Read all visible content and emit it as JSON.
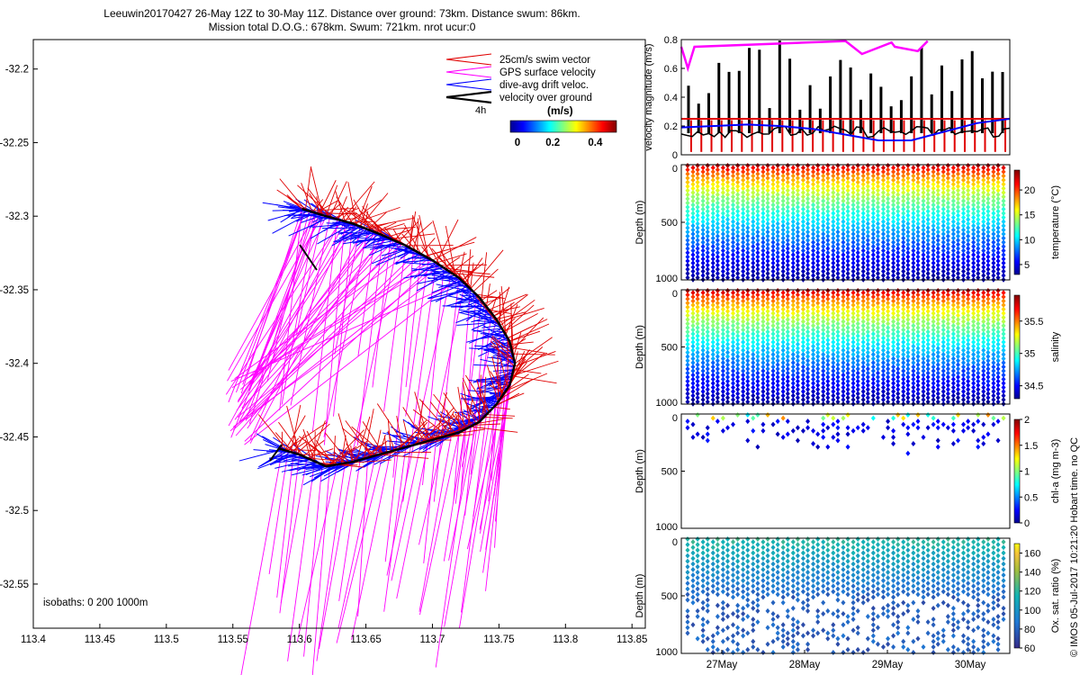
{
  "figure": {
    "title_line1": "Leeuwin20170427 26-May 12Z to 30-May 11Z. Distance over ground: 73km. Distance swum: 86km.",
    "title_line2": "Mission total D.O.G.: 678km. Swum: 721km. nrot ucur:0",
    "credit": "© IMOS 05-Jul-2017 10:21:20 Hobart time. no QC"
  },
  "colors": {
    "swim_vector": "#e00000",
    "gps_surface_velocity": "#ff00ff",
    "dive_avg_drift": "#0000ff",
    "velocity_over_ground": "#000000",
    "track": "#000000"
  },
  "chart_data": [
    {
      "type": "scatter",
      "panel": "map",
      "xlim": [
        113.4,
        113.86
      ],
      "ylim": [
        -32.58,
        -32.18
      ],
      "xticks": [
        "113.4",
        "113.45",
        "113.5",
        "113.55",
        "113.6",
        "113.65",
        "113.7",
        "113.75",
        "113.8",
        "113.85"
      ],
      "yticks": [
        "-32.2",
        "-32.25",
        "-32.3",
        "-32.35",
        "-32.4",
        "-32.45",
        "-32.5",
        "-32.55"
      ],
      "legend": [
        {
          "label": "25cm/s swim vector",
          "color": "#e00000"
        },
        {
          "label": "GPS surface velocity",
          "color": "#ff00ff"
        },
        {
          "label": "dive-avg drift veloc.",
          "color": "#0000ff"
        },
        {
          "label": "velocity over ground",
          "color": "#000000"
        }
      ],
      "legend_scale_label": "4h",
      "colorbar": {
        "title": "(m/s)",
        "ticks": [
          "0",
          "0.2",
          "0.4"
        ]
      },
      "isobaths_note": "isobaths: 0   200   1000m",
      "track": {
        "lon": [
          113.602,
          113.62,
          113.64,
          113.66,
          113.68,
          113.7,
          113.72,
          113.735,
          113.748,
          113.758,
          113.762,
          113.758,
          113.748,
          113.735,
          113.72,
          113.7,
          113.68,
          113.66,
          113.64,
          113.62,
          113.6,
          113.585
        ],
        "lat": [
          -32.295,
          -32.3,
          -32.305,
          -32.312,
          -32.32,
          -32.33,
          -32.342,
          -32.355,
          -32.37,
          -32.385,
          -32.4,
          -32.415,
          -32.428,
          -32.44,
          -32.447,
          -32.452,
          -32.457,
          -32.462,
          -32.467,
          -32.47,
          -32.462,
          -32.458
        ]
      }
    },
    {
      "type": "line",
      "panel": "velocity",
      "ylabel": "velocity magnitude (m/s)",
      "ylim": [
        0,
        0.8
      ],
      "yticks": [
        "0",
        "0.2",
        "0.4",
        "0.6",
        "0.8"
      ],
      "series": [
        {
          "name": "swim",
          "color": "#e00000",
          "level": 0.25
        },
        {
          "name": "drift",
          "color": "#0000ff",
          "x": [
            0,
            0.1,
            0.2,
            0.3,
            0.4,
            0.5,
            0.6,
            0.7,
            0.8,
            0.9,
            1.0
          ],
          "y": [
            0.19,
            0.2,
            0.21,
            0.2,
            0.18,
            0.14,
            0.1,
            0.1,
            0.16,
            0.22,
            0.25
          ]
        },
        {
          "name": "gps",
          "color": "#ff00ff",
          "x": [
            0.0,
            0.02,
            0.04,
            0.5,
            0.55,
            0.64,
            0.65,
            0.72,
            0.75
          ],
          "y": [
            0.75,
            0.6,
            0.75,
            0.79,
            0.7,
            0.78,
            0.75,
            0.72,
            0.79
          ]
        }
      ]
    },
    {
      "type": "scatter",
      "panel": "temperature",
      "ylabel": "Depth (m)",
      "ylim": [
        1000,
        0
      ],
      "yticks": [
        "0",
        "500",
        "1000"
      ],
      "colorbar": {
        "label": "temperature (°C)",
        "ticks": [
          "5",
          "10",
          "15",
          "20"
        ],
        "range": [
          3,
          24
        ]
      }
    },
    {
      "type": "scatter",
      "panel": "salinity",
      "ylabel": "Depth (m)",
      "ylim": [
        1000,
        0
      ],
      "yticks": [
        "0",
        "500",
        "1000"
      ],
      "colorbar": {
        "label": "salinity",
        "ticks": [
          "34.5",
          "35",
          "35.5"
        ],
        "range": [
          34.3,
          35.9
        ]
      }
    },
    {
      "type": "scatter",
      "panel": "chlorophyll",
      "ylabel": "Depth (m)",
      "ylim": [
        1000,
        0
      ],
      "yticks": [
        "0",
        "500",
        "1000"
      ],
      "colorbar": {
        "label": "chl-a (mg m-3)",
        "ticks": [
          "0",
          "0.5",
          "1",
          "1.5",
          "2"
        ],
        "range": [
          0,
          2
        ]
      }
    },
    {
      "type": "scatter",
      "panel": "oxygen",
      "ylabel": "Depth (m)",
      "ylim": [
        1000,
        0
      ],
      "yticks": [
        "0",
        "500",
        "1000"
      ],
      "xticks": [
        "27May",
        "28May",
        "29May",
        "30May"
      ],
      "colorbar": {
        "label": "Ox. sat. ratio (%)",
        "ticks": [
          "60",
          "80",
          "100",
          "120",
          "140",
          "160"
        ],
        "range": [
          60,
          170
        ]
      }
    }
  ]
}
